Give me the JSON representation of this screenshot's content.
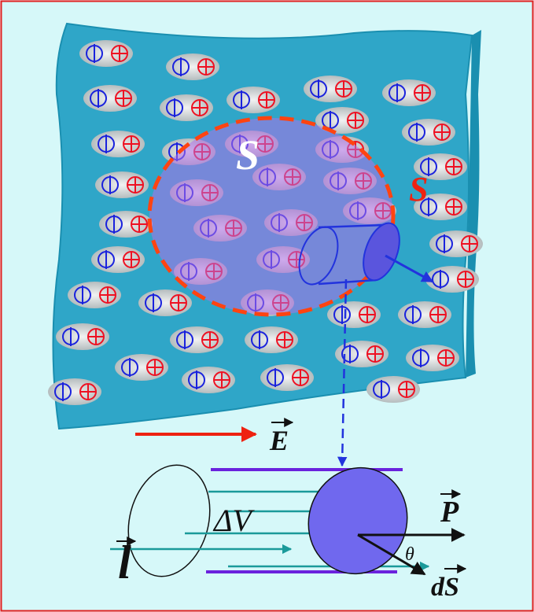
{
  "labels": {
    "surface_outer": "S",
    "surface_inner": "S",
    "field": "E",
    "volume": "ΔV",
    "polarization": "P",
    "angle": "θ",
    "area_element": "dS",
    "length": "l"
  }
}
